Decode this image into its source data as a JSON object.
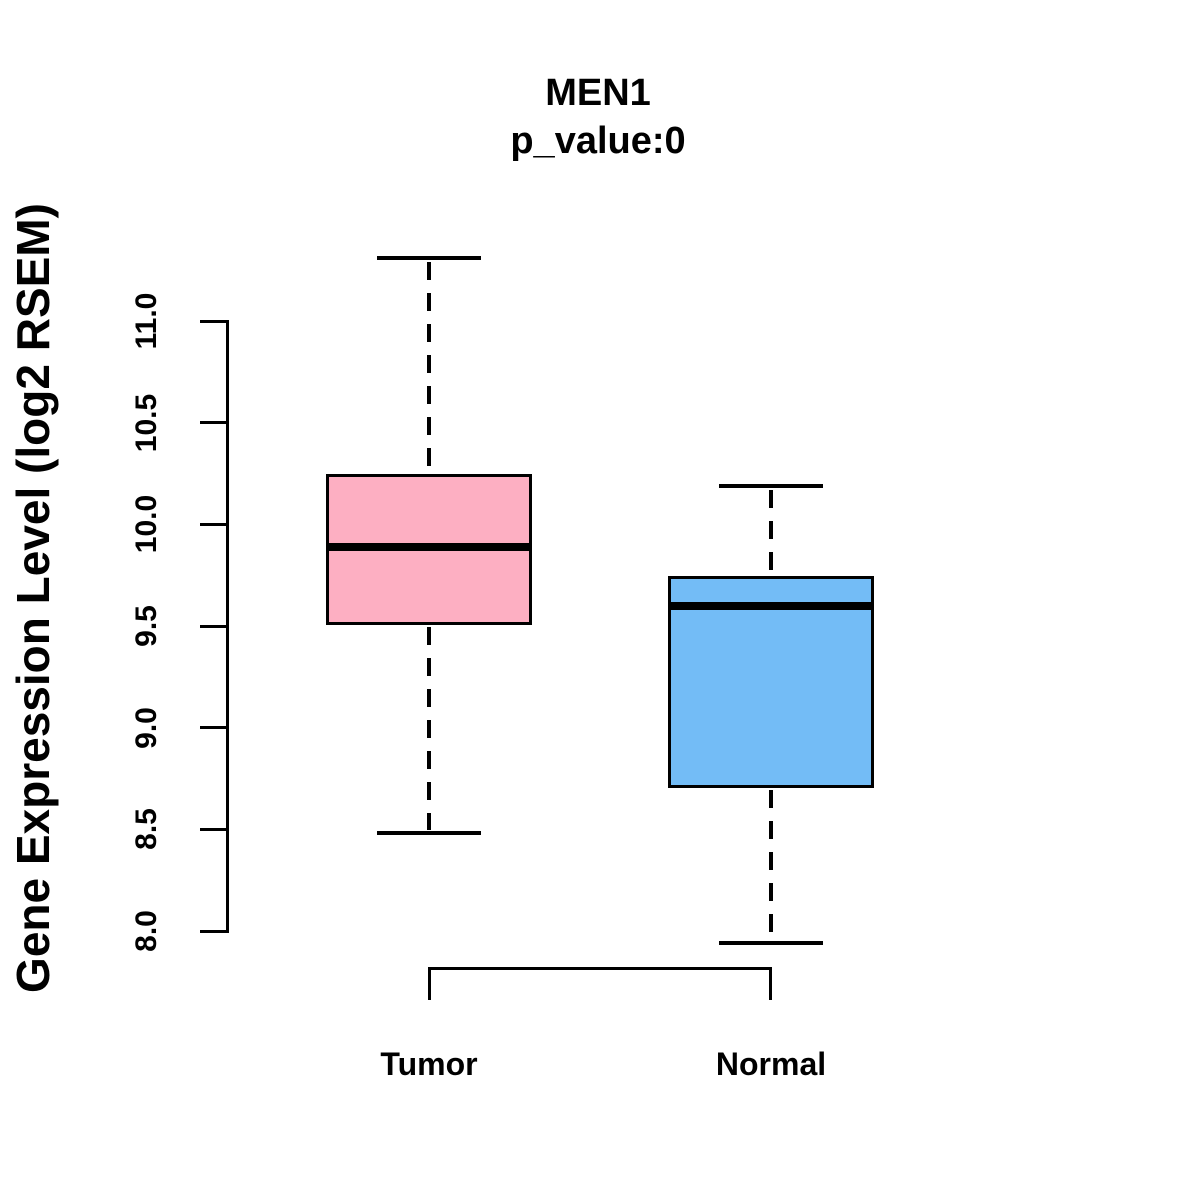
{
  "chart_data": {
    "type": "boxplot",
    "title": "MEN1",
    "subtitle": "p_value:0",
    "ylabel": "Gene Expression Level (log2 RSEM)",
    "yticks": [
      8.0,
      8.5,
      9.0,
      9.5,
      10.0,
      10.5,
      11.0
    ],
    "ytick_labels": [
      "8.0",
      "8.5",
      "9.0",
      "9.5",
      "10.0",
      "10.5",
      "11.0"
    ],
    "ylim": [
      7.9,
      11.35
    ],
    "grid": false,
    "legend": "none",
    "groups": [
      {
        "label": "Tumor",
        "color": "#FDAFC2",
        "whisker_low": 8.48,
        "q1": 9.51,
        "median": 9.89,
        "q3": 10.24,
        "whisker_high": 11.31
      },
      {
        "label": "Normal",
        "color": "#73BCF6",
        "whisker_low": 7.94,
        "q1": 8.71,
        "median": 9.6,
        "q3": 9.74,
        "whisker_high": 10.19
      }
    ],
    "line_color": "#000000",
    "background": "#ffffff"
  }
}
